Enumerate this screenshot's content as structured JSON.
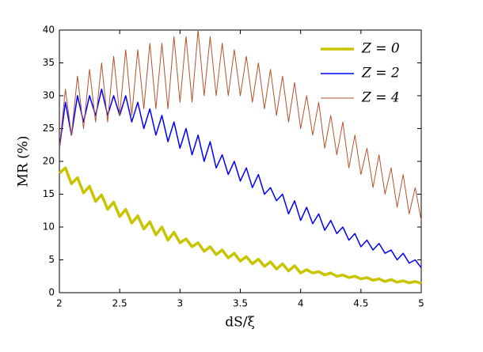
{
  "chart_data": {
    "type": "line",
    "x_label": "dS/ξ",
    "y_label": "MR (%)",
    "x": [
      2,
      2.05,
      2.1,
      2.15,
      2.2,
      2.25,
      2.3,
      2.35,
      2.4,
      2.45,
      2.5,
      2.55,
      2.6,
      2.65,
      2.7,
      2.75,
      2.8,
      2.85,
      2.9,
      2.95,
      3,
      3.05,
      3.1,
      3.15,
      3.2,
      3.25,
      3.3,
      3.35,
      3.4,
      3.45,
      3.5,
      3.55,
      3.6,
      3.65,
      3.7,
      3.75,
      3.8,
      3.85,
      3.9,
      3.95,
      4,
      4.05,
      4.1,
      4.15,
      4.2,
      4.25,
      4.3,
      4.35,
      4.4,
      4.45,
      4.5,
      4.55,
      4.6,
      4.65,
      4.7,
      4.75,
      4.8,
      4.85,
      4.9,
      4.95,
      5
    ],
    "series": [
      {
        "name": "Z = 0",
        "color": "#c8c400",
        "width": 3.5,
        "values": [
          18.2,
          19.0,
          16.6,
          17.5,
          15.2,
          16.2,
          13.9,
          14.9,
          12.7,
          13.8,
          11.6,
          12.7,
          10.6,
          11.7,
          9.7,
          10.8,
          8.8,
          10.0,
          8.0,
          9.2,
          7.6,
          8.2,
          7.0,
          7.6,
          6.3,
          7.0,
          5.8,
          6.5,
          5.3,
          6.0,
          4.8,
          5.5,
          4.4,
          5.1,
          4.0,
          4.7,
          3.6,
          4.4,
          3.3,
          4.1,
          3.0,
          3.5,
          3.0,
          3.2,
          2.7,
          3.0,
          2.5,
          2.7,
          2.3,
          2.5,
          2.1,
          2.3,
          1.9,
          2.1,
          1.7,
          2.0,
          1.6,
          1.8,
          1.5,
          1.7,
          1.4
        ]
      },
      {
        "name": "Z = 2",
        "color": "#0000ff",
        "width": 1.5,
        "values": [
          22,
          29,
          24,
          30,
          26,
          30,
          27,
          31,
          27,
          30,
          27,
          30,
          26,
          29,
          25,
          28,
          24,
          27,
          23,
          26,
          22,
          25,
          21,
          24,
          20,
          23,
          19,
          21,
          18,
          20,
          17,
          19,
          16,
          18,
          15,
          16,
          14,
          15,
          12,
          14,
          11,
          13,
          10.5,
          12,
          9.5,
          11,
          9,
          10,
          8,
          9,
          7,
          8,
          6.5,
          7.5,
          6,
          6.5,
          5,
          6,
          4.5,
          5,
          3.8
        ]
      },
      {
        "name": "Z = 4",
        "color": "#b5522e",
        "width": 1,
        "values": [
          22,
          31,
          24,
          33,
          25,
          34,
          26,
          35,
          26,
          36,
          27,
          37,
          27,
          37,
          28,
          38,
          28,
          38,
          28,
          39,
          29,
          39,
          29,
          40,
          30,
          39,
          30,
          38,
          30,
          37,
          30,
          36,
          29,
          35,
          28,
          34,
          27,
          33,
          26,
          32,
          25,
          30,
          24,
          29,
          22,
          27,
          21,
          26,
          19,
          24,
          18,
          22,
          16,
          21,
          15,
          19,
          13,
          18,
          12,
          16,
          11
        ]
      }
    ],
    "xlim": [
      2,
      5
    ],
    "xticks": [
      2,
      2.5,
      3,
      3.5,
      4,
      4.5,
      5
    ],
    "ylim": [
      0,
      40
    ],
    "yticks": [
      0,
      5,
      10,
      15,
      20,
      25,
      30,
      35,
      40
    ],
    "grid": false,
    "legend": "top-right"
  }
}
